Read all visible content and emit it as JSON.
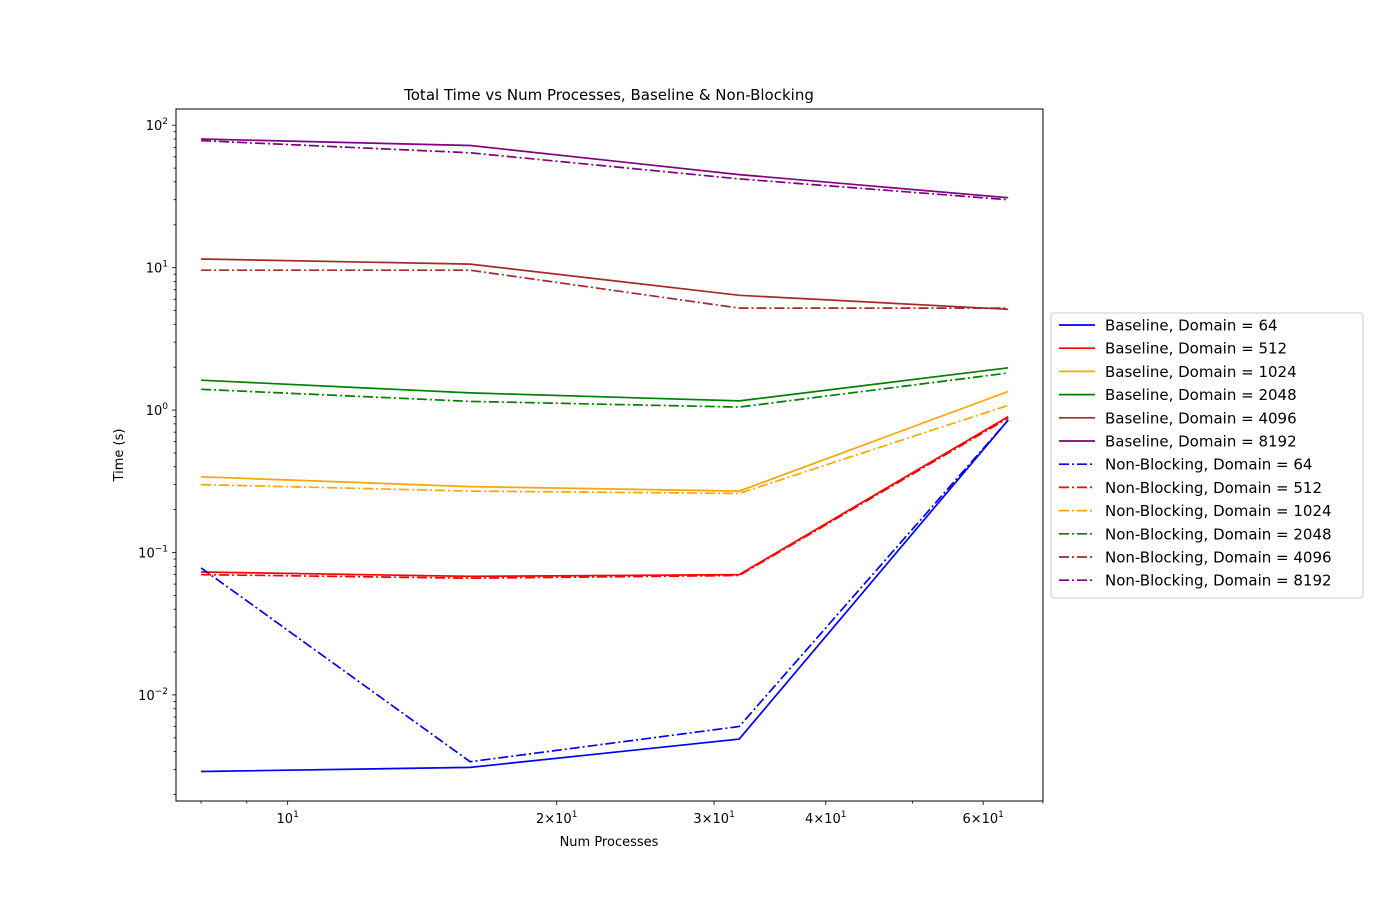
{
  "chart_data": {
    "type": "line",
    "title": "Total Time vs Num Processes, Baseline & Non-Blocking",
    "xlabel": "Num Processes",
    "ylabel": "Time (s)",
    "xscale": "log",
    "yscale": "log",
    "xlim": [
      7.5,
      70
    ],
    "ylim": [
      0.0018,
      130
    ],
    "legend_position": "center-right outside",
    "x_ticks": [
      {
        "value": 10,
        "base": "10",
        "exp": "1",
        "coef": ""
      },
      {
        "value": 20,
        "base": "10",
        "exp": "1",
        "coef": "2×"
      },
      {
        "value": 30,
        "base": "10",
        "exp": "1",
        "coef": "3×"
      },
      {
        "value": 40,
        "base": "10",
        "exp": "1",
        "coef": "4×"
      },
      {
        "value": 60,
        "base": "10",
        "exp": "1",
        "coef": "6×"
      }
    ],
    "y_ticks": [
      {
        "value": 0.01,
        "base": "10",
        "exp": "−2"
      },
      {
        "value": 0.1,
        "base": "10",
        "exp": "−1"
      },
      {
        "value": 1,
        "base": "10",
        "exp": "0"
      },
      {
        "value": 10,
        "base": "10",
        "exp": "1"
      },
      {
        "value": 100,
        "base": "10",
        "exp": "2"
      }
    ],
    "x": [
      8,
      16,
      32,
      64
    ],
    "series": [
      {
        "name": "Baseline, Domain = 64",
        "color": "#0000ff",
        "style": "solid",
        "values": [
          0.0029,
          0.0031,
          0.0049,
          0.85
        ]
      },
      {
        "name": "Baseline, Domain = 512",
        "color": "#ff0000",
        "style": "solid",
        "values": [
          0.073,
          0.068,
          0.07,
          0.9
        ]
      },
      {
        "name": "Baseline, Domain = 1024",
        "color": "#ffa500",
        "style": "solid",
        "values": [
          0.34,
          0.29,
          0.27,
          1.35
        ]
      },
      {
        "name": "Baseline, Domain = 2048",
        "color": "#008000",
        "style": "solid",
        "values": [
          1.62,
          1.32,
          1.16,
          1.98
        ]
      },
      {
        "name": "Baseline, Domain = 4096",
        "color": "#a52a2a",
        "style": "solid",
        "values": [
          11.5,
          10.6,
          6.4,
          5.1
        ]
      },
      {
        "name": "Baseline, Domain = 8192",
        "color": "#800080",
        "style": "solid",
        "values": [
          80,
          72,
          45,
          31
        ]
      },
      {
        "name": "Non-Blocking, Domain = 64",
        "color": "#0000ff",
        "style": "dashdot",
        "values": [
          0.078,
          0.0034,
          0.006,
          0.85
        ]
      },
      {
        "name": "Non-Blocking, Domain = 512",
        "color": "#ff0000",
        "style": "dashdot",
        "values": [
          0.07,
          0.066,
          0.069,
          0.88
        ]
      },
      {
        "name": "Non-Blocking, Domain = 1024",
        "color": "#ffa500",
        "style": "dashdot",
        "values": [
          0.3,
          0.27,
          0.26,
          1.08
        ]
      },
      {
        "name": "Non-Blocking, Domain = 2048",
        "color": "#008000",
        "style": "dashdot",
        "values": [
          1.4,
          1.15,
          1.05,
          1.82
        ]
      },
      {
        "name": "Non-Blocking, Domain = 4096",
        "color": "#a52a2a",
        "style": "dashdot",
        "values": [
          9.6,
          9.6,
          5.2,
          5.2
        ]
      },
      {
        "name": "Non-Blocking, Domain = 8192",
        "color": "#800080",
        "style": "dashdot",
        "values": [
          78,
          64,
          42,
          30
        ]
      }
    ]
  }
}
